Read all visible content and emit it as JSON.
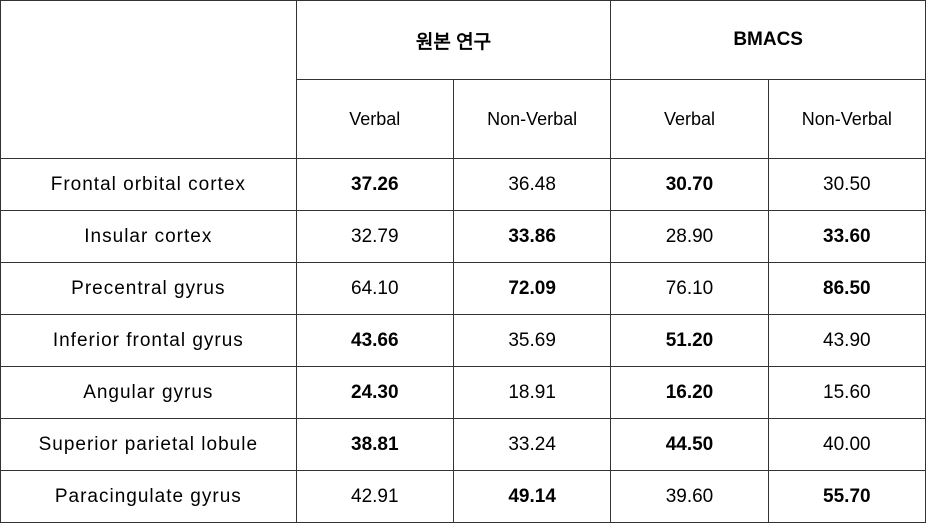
{
  "table": {
    "groups": [
      {
        "label": "원본 연구"
      },
      {
        "label": "BMACS"
      }
    ],
    "subheaders": [
      "Verbal",
      "Non-Verbal",
      "Verbal",
      "Non-Verbal"
    ],
    "rows": [
      {
        "label": "Frontal orbital cortex",
        "cells": [
          {
            "value": "37.26",
            "bold": true
          },
          {
            "value": "36.48",
            "bold": false
          },
          {
            "value": "30.70",
            "bold": true
          },
          {
            "value": "30.50",
            "bold": false
          }
        ]
      },
      {
        "label": "Insular cortex",
        "cells": [
          {
            "value": "32.79",
            "bold": false
          },
          {
            "value": "33.86",
            "bold": true
          },
          {
            "value": "28.90",
            "bold": false
          },
          {
            "value": "33.60",
            "bold": true
          }
        ]
      },
      {
        "label": "Precentral gyrus",
        "cells": [
          {
            "value": "64.10",
            "bold": false
          },
          {
            "value": "72.09",
            "bold": true
          },
          {
            "value": "76.10",
            "bold": false
          },
          {
            "value": "86.50",
            "bold": true
          }
        ]
      },
      {
        "label": "Inferior frontal gyrus",
        "cells": [
          {
            "value": "43.66",
            "bold": true
          },
          {
            "value": "35.69",
            "bold": false
          },
          {
            "value": "51.20",
            "bold": true
          },
          {
            "value": "43.90",
            "bold": false
          }
        ]
      },
      {
        "label": "Angular gyrus",
        "cells": [
          {
            "value": "24.30",
            "bold": true
          },
          {
            "value": "18.91",
            "bold": false
          },
          {
            "value": "16.20",
            "bold": true
          },
          {
            "value": "15.60",
            "bold": false
          }
        ]
      },
      {
        "label": "Superior parietal lobule",
        "cells": [
          {
            "value": "38.81",
            "bold": true
          },
          {
            "value": "33.24",
            "bold": false
          },
          {
            "value": "44.50",
            "bold": true
          },
          {
            "value": "40.00",
            "bold": false
          }
        ]
      },
      {
        "label": "Paracingulate gyrus",
        "cells": [
          {
            "value": "42.91",
            "bold": false
          },
          {
            "value": "49.14",
            "bold": true
          },
          {
            "value": "39.60",
            "bold": false
          },
          {
            "value": "55.70",
            "bold": true
          }
        ]
      }
    ],
    "colors": {
      "background": "#ffffff",
      "border": "#333333",
      "text": "#000000"
    },
    "column_widths": {
      "label": 295,
      "data": 157
    }
  }
}
